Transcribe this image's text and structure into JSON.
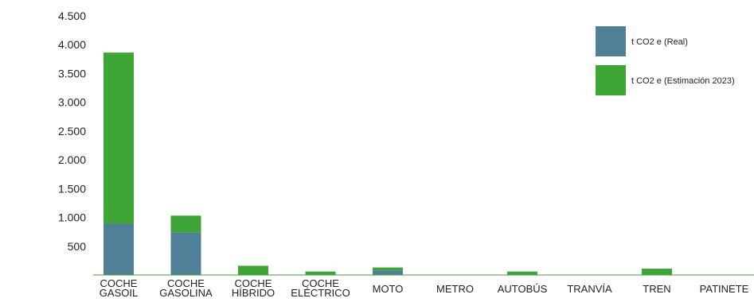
{
  "colors": {
    "real": "#4f8098",
    "estimate": "#3ea537",
    "axis_line": "#3ea537",
    "text": "#222222"
  },
  "chart_data": {
    "type": "bar",
    "stacked": true,
    "title": "",
    "xlabel": "",
    "ylabel": "",
    "ylim": [
      0,
      4500
    ],
    "yticks": [
      "4.500",
      "4.000",
      "3.500",
      "3.000",
      "2.500",
      "2.000",
      "1.500",
      "1.000",
      "500"
    ],
    "ytick_values": [
      4500,
      4000,
      3500,
      3000,
      2500,
      2000,
      1500,
      1000,
      500
    ],
    "grid": false,
    "legend_position": "top-right",
    "categories": [
      [
        "COCHE",
        "GASOIL"
      ],
      [
        "COCHE",
        "GASOLINA"
      ],
      [
        "COCHE",
        "HÍBRIDO"
      ],
      [
        "COCHE",
        "ELÉCTRICO"
      ],
      [
        "MOTO"
      ],
      [
        "METRO"
      ],
      [
        "AUTOBÚS"
      ],
      [
        "TRANVÍA"
      ],
      [
        "TREN"
      ],
      [
        "PATINETE"
      ]
    ],
    "series": [
      {
        "name": "t CO2 e (Real)",
        "color": "#4f8098",
        "values": [
          890,
          740,
          0,
          0,
          80,
          0,
          0,
          0,
          0,
          0
        ]
      },
      {
        "name": "t CO2 e (Estimación 2023)",
        "color": "#3ea537",
        "values": [
          2970,
          290,
          160,
          60,
          50,
          0,
          60,
          0,
          110,
          0
        ]
      }
    ]
  }
}
